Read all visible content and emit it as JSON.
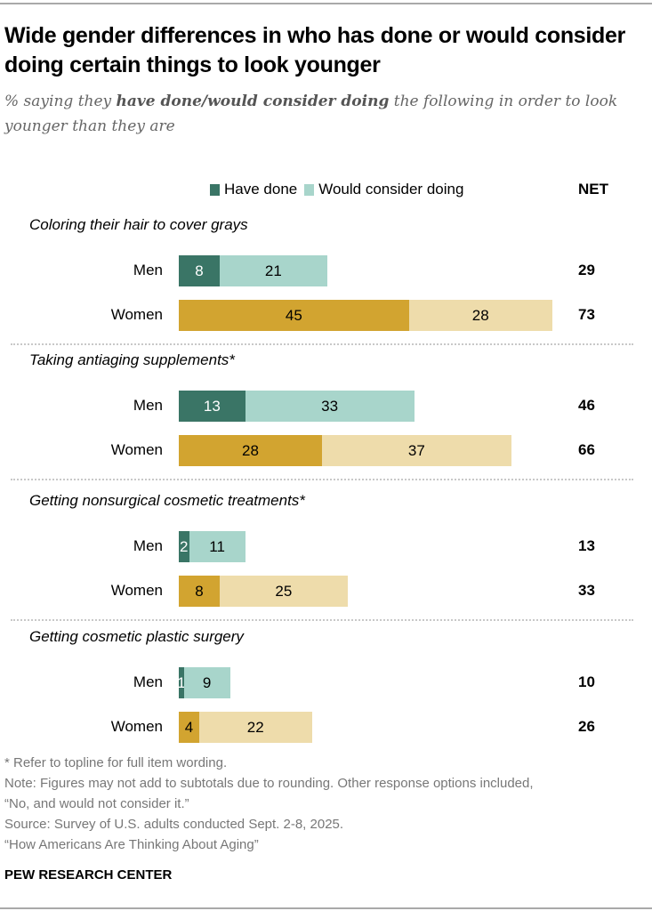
{
  "title": "Wide gender differences in who has done or would consider doing certain things to look younger",
  "subtitle": {
    "pre": "% saying they ",
    "bold": "have done/would consider doing",
    "post": " the following in order to look younger than they are"
  },
  "colors": {
    "men_done": "#3a7566",
    "men_consider": "#a8d5cb",
    "women_done": "#d2a430",
    "women_consider": "#eedcab"
  },
  "chart_data": {
    "type": "bar",
    "orientation": "horizontal-stacked",
    "legend": [
      "Have done",
      "Would consider doing"
    ],
    "legend_placement": "top",
    "net_header": "NET",
    "groups": [
      {
        "label": "Coloring their hair to cover grays",
        "rows": [
          {
            "name": "Men",
            "done": 8,
            "consider": 21,
            "net": 29
          },
          {
            "name": "Women",
            "done": 45,
            "consider": 28,
            "net": 73
          }
        ]
      },
      {
        "label": "Taking antiaging supplements*",
        "rows": [
          {
            "name": "Men",
            "done": 13,
            "consider": 33,
            "net": 46
          },
          {
            "name": "Women",
            "done": 28,
            "consider": 37,
            "net": 66
          }
        ]
      },
      {
        "label": "Getting nonsurgical cosmetic treatments*",
        "rows": [
          {
            "name": "Men",
            "done": 2,
            "consider": 11,
            "net": 13
          },
          {
            "name": "Women",
            "done": 8,
            "consider": 25,
            "net": 33
          }
        ]
      },
      {
        "label": "Getting cosmetic plastic surgery",
        "rows": [
          {
            "name": "Men",
            "done": 1,
            "consider": 9,
            "net": 10
          },
          {
            "name": "Women",
            "done": 4,
            "consider": 22,
            "net": 26
          }
        ]
      }
    ]
  },
  "footnotes": [
    "* Refer to topline for full item wording.",
    "Note: Figures may not add to subtotals due to rounding. Other response options included,",
    "“No, and would not consider it.”",
    "Source: Survey of U.S. adults conducted Sept. 2-8, 2025.",
    "“How Americans Are Thinking About Aging”"
  ],
  "brand": "PEW RESEARCH CENTER"
}
